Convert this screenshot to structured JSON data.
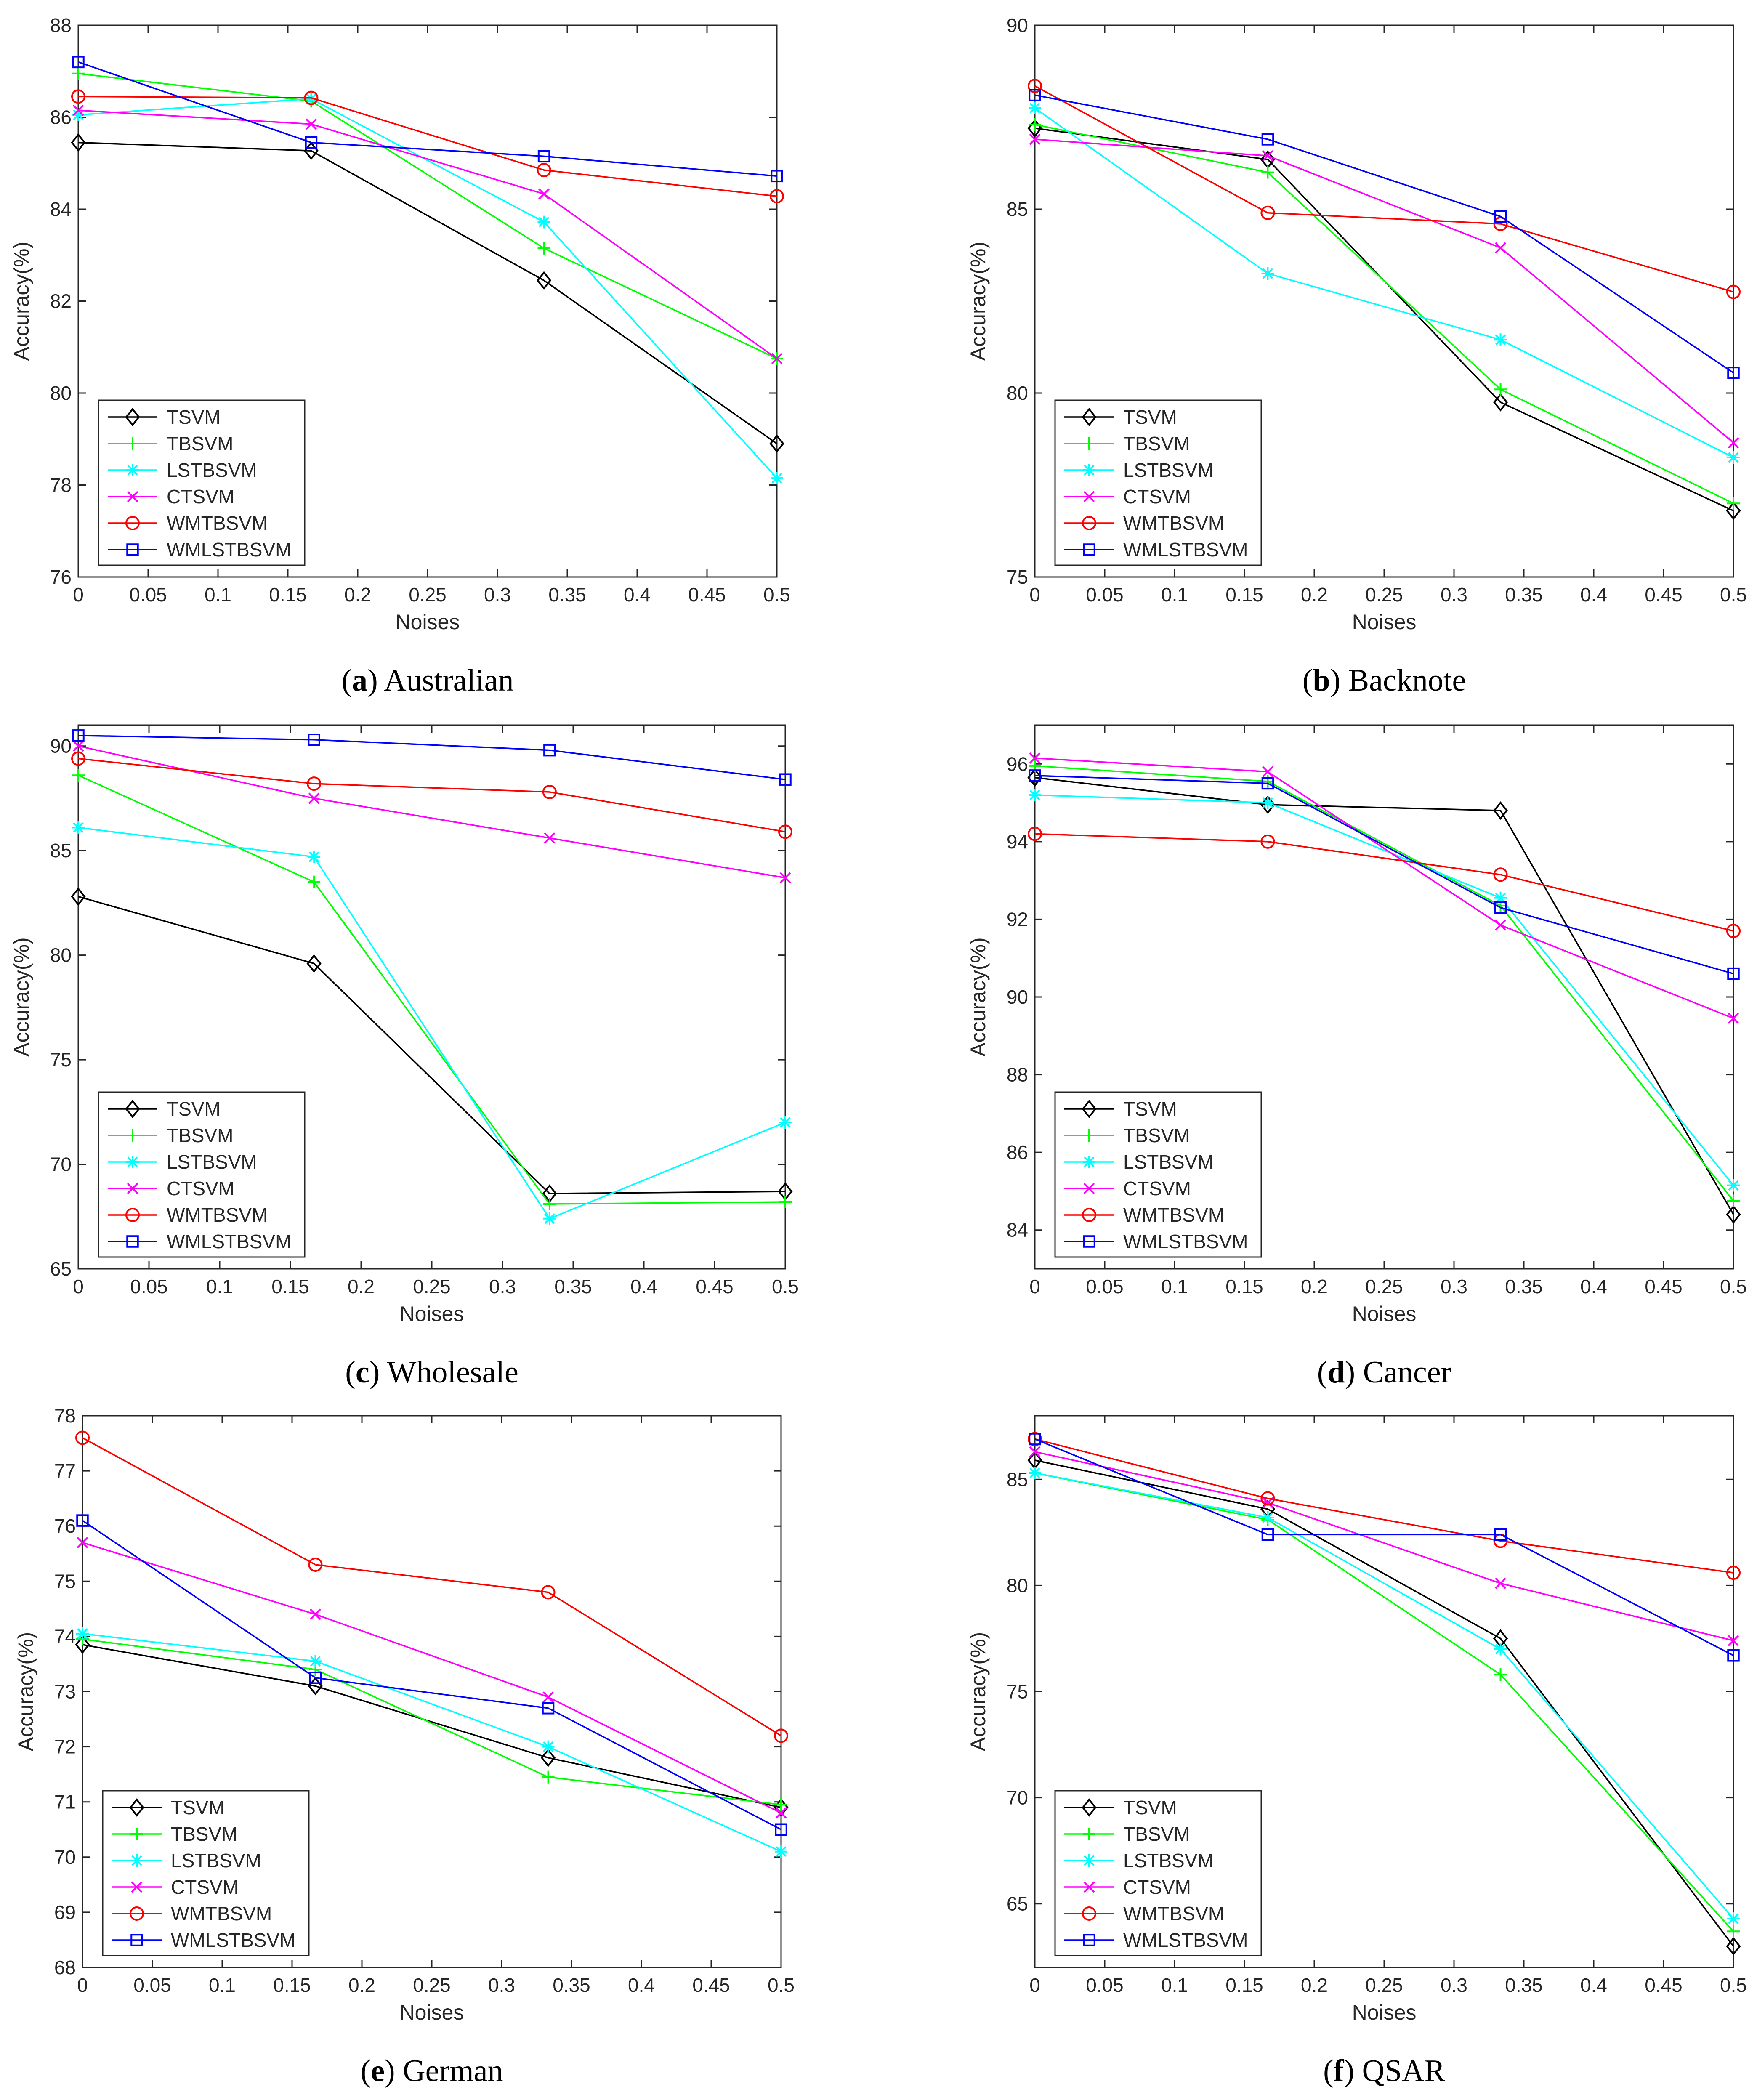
{
  "colors": {
    "TSVM": "#000000",
    "TBSVM": "#00ff00",
    "LSTBSVM": "#00ffff",
    "CTSVM": "#ff00ff",
    "WMTBSVM": "#ff0000",
    "WMLSTBSVM": "#0000ff"
  },
  "chart_data": [
    {
      "type": "line",
      "panel_letter": "a",
      "caption": "Australian",
      "xlabel": "Noises",
      "ylabel": "Accuracy(%)",
      "xlim": [
        0,
        0.5
      ],
      "ylim": [
        76,
        88
      ],
      "xticks": [
        0,
        0.05,
        0.1,
        0.15,
        0.2,
        0.25,
        0.3,
        0.35,
        0.4,
        0.45,
        0.5
      ],
      "xtick_labels": [
        "0",
        "0.05",
        "0.1",
        "0.15",
        "0.2",
        "0.25",
        "0.3",
        "0.35",
        "0.4",
        "0.45",
        "0.5"
      ],
      "yticks": [
        76,
        78,
        80,
        82,
        84,
        86,
        88
      ],
      "ytick_labels": [
        "76",
        "78",
        "80",
        "82",
        "84",
        "86",
        "88"
      ],
      "x": [
        0,
        0.1667,
        0.3333,
        0.5
      ],
      "legend": "bottom-left",
      "series": [
        {
          "name": "TSVM",
          "marker": "diamond",
          "values": [
            85.45,
            85.27,
            82.45,
            78.9
          ]
        },
        {
          "name": "TBSVM",
          "marker": "plus",
          "values": [
            86.95,
            86.35,
            83.15,
            80.75
          ]
        },
        {
          "name": "LSTBSVM",
          "marker": "star",
          "values": [
            86.05,
            86.4,
            83.72,
            78.15
          ]
        },
        {
          "name": "CTSVM",
          "marker": "x",
          "values": [
            86.15,
            85.85,
            84.33,
            80.75
          ]
        },
        {
          "name": "WMTBSVM",
          "marker": "circle",
          "values": [
            86.45,
            86.42,
            84.85,
            84.28
          ]
        },
        {
          "name": "WMLSTBSVM",
          "marker": "square",
          "values": [
            87.2,
            85.45,
            85.15,
            84.72
          ]
        }
      ]
    },
    {
      "type": "line",
      "panel_letter": "b",
      "caption": "Backnote",
      "xlabel": "Noises",
      "ylabel": "Accuracy(%)",
      "xlim": [
        0,
        0.5
      ],
      "ylim": [
        75,
        90
      ],
      "xticks": [
        0,
        0.05,
        0.1,
        0.15,
        0.2,
        0.25,
        0.3,
        0.35,
        0.4,
        0.45,
        0.5
      ],
      "xtick_labels": [
        "0",
        "0.05",
        "0.1",
        "0.15",
        "0.2",
        "0.25",
        "0.3",
        "0.35",
        "0.4",
        "0.45",
        "0.5"
      ],
      "yticks": [
        75,
        80,
        85,
        90
      ],
      "ytick_labels": [
        "75",
        "80",
        "85",
        "90"
      ],
      "x": [
        0,
        0.1667,
        0.3333,
        0.5
      ],
      "legend": "bottom-left",
      "series": [
        {
          "name": "TSVM",
          "marker": "diamond",
          "values": [
            87.2,
            86.35,
            79.75,
            76.8
          ]
        },
        {
          "name": "TBSVM",
          "marker": "plus",
          "values": [
            87.3,
            86.0,
            80.1,
            77.0
          ]
        },
        {
          "name": "LSTBSVM",
          "marker": "star",
          "values": [
            87.75,
            83.25,
            81.45,
            78.25
          ]
        },
        {
          "name": "CTSVM",
          "marker": "x",
          "values": [
            86.9,
            86.45,
            83.95,
            78.65
          ]
        },
        {
          "name": "WMTBSVM",
          "marker": "circle",
          "values": [
            88.35,
            84.9,
            84.6,
            82.75
          ]
        },
        {
          "name": "WMLSTBSVM",
          "marker": "square",
          "values": [
            88.1,
            86.9,
            84.8,
            80.55
          ]
        }
      ]
    },
    {
      "type": "line",
      "panel_letter": "c",
      "caption": "Wholesale",
      "xlabel": "Noises",
      "ylabel": "Accuracy(%)",
      "xlim": [
        0,
        0.5
      ],
      "ylim": [
        65,
        91
      ],
      "xticks": [
        0,
        0.05,
        0.1,
        0.15,
        0.2,
        0.25,
        0.3,
        0.35,
        0.4,
        0.45,
        0.5
      ],
      "xtick_labels": [
        "0",
        "0.05",
        "0.1",
        "0.15",
        "0.2",
        "0.25",
        "0.3",
        "0.35",
        "0.4",
        "0.45",
        "0.5"
      ],
      "yticks": [
        65,
        70,
        75,
        80,
        85,
        90
      ],
      "ytick_labels": [
        "65",
        "70",
        "75",
        "80",
        "85",
        "90"
      ],
      "x": [
        0,
        0.1667,
        0.3333,
        0.5
      ],
      "legend": "bottom-left",
      "series": [
        {
          "name": "TSVM",
          "marker": "diamond",
          "values": [
            82.8,
            79.6,
            68.6,
            68.7
          ]
        },
        {
          "name": "TBSVM",
          "marker": "plus",
          "values": [
            88.6,
            83.5,
            68.1,
            68.2
          ]
        },
        {
          "name": "LSTBSVM",
          "marker": "star",
          "values": [
            86.1,
            84.7,
            67.4,
            72.0
          ]
        },
        {
          "name": "CTSVM",
          "marker": "x",
          "values": [
            90.0,
            87.5,
            85.6,
            83.7
          ]
        },
        {
          "name": "WMTBSVM",
          "marker": "circle",
          "values": [
            89.4,
            88.2,
            87.8,
            85.9
          ]
        },
        {
          "name": "WMLSTBSVM",
          "marker": "square",
          "values": [
            90.5,
            90.3,
            89.8,
            88.4
          ]
        }
      ]
    },
    {
      "type": "line",
      "panel_letter": "d",
      "caption": "Cancer",
      "xlabel": "Noises",
      "ylabel": "Accuracy(%)",
      "xlim": [
        0,
        0.5
      ],
      "ylim": [
        83,
        97
      ],
      "xticks": [
        0,
        0.05,
        0.1,
        0.15,
        0.2,
        0.25,
        0.3,
        0.35,
        0.4,
        0.45,
        0.5
      ],
      "xtick_labels": [
        "0",
        "0.05",
        "0.1",
        "0.15",
        "0.2",
        "0.25",
        "0.3",
        "0.35",
        "0.4",
        "0.45",
        "0.5"
      ],
      "yticks": [
        84,
        86,
        88,
        90,
        92,
        94,
        96
      ],
      "ytick_labels": [
        "84",
        "86",
        "88",
        "90",
        "92",
        "94",
        "96"
      ],
      "x": [
        0,
        0.1667,
        0.3333,
        0.5
      ],
      "legend": "bottom-left",
      "series": [
        {
          "name": "TSVM",
          "marker": "diamond",
          "values": [
            95.65,
            94.95,
            94.8,
            84.4
          ]
        },
        {
          "name": "TBSVM",
          "marker": "plus",
          "values": [
            95.95,
            95.55,
            92.35,
            84.75
          ]
        },
        {
          "name": "LSTBSVM",
          "marker": "star",
          "values": [
            95.2,
            95.0,
            92.55,
            85.15
          ]
        },
        {
          "name": "CTSVM",
          "marker": "x",
          "values": [
            96.15,
            95.8,
            91.85,
            89.45
          ]
        },
        {
          "name": "WMTBSVM",
          "marker": "circle",
          "values": [
            94.2,
            94.0,
            93.15,
            91.7
          ]
        },
        {
          "name": "WMLSTBSVM",
          "marker": "square",
          "values": [
            95.7,
            95.5,
            92.3,
            90.6
          ]
        }
      ]
    },
    {
      "type": "line",
      "panel_letter": "e",
      "caption": "German",
      "xlabel": "Noises",
      "ylabel": "Accuracy(%)",
      "xlim": [
        0,
        0.5
      ],
      "ylim": [
        68,
        78
      ],
      "xticks": [
        0,
        0.05,
        0.1,
        0.15,
        0.2,
        0.25,
        0.3,
        0.35,
        0.4,
        0.45,
        0.5
      ],
      "xtick_labels": [
        "0",
        "0.05",
        "0.1",
        "0.15",
        "0.2",
        "0.25",
        "0.3",
        "0.35",
        "0.4",
        "0.45",
        "0.5"
      ],
      "yticks": [
        68,
        69,
        70,
        71,
        72,
        73,
        74,
        75,
        76,
        77,
        78
      ],
      "ytick_labels": [
        "68",
        "69",
        "70",
        "71",
        "72",
        "73",
        "74",
        "75",
        "76",
        "77",
        "78"
      ],
      "x": [
        0,
        0.1667,
        0.3333,
        0.5
      ],
      "legend": "bottom-left",
      "series": [
        {
          "name": "TSVM",
          "marker": "diamond",
          "values": [
            73.85,
            73.1,
            71.8,
            70.9
          ]
        },
        {
          "name": "TBSVM",
          "marker": "plus",
          "values": [
            73.95,
            73.4,
            71.45,
            70.95
          ]
        },
        {
          "name": "LSTBSVM",
          "marker": "star",
          "values": [
            74.05,
            73.55,
            72.0,
            70.1
          ]
        },
        {
          "name": "CTSVM",
          "marker": "x",
          "values": [
            75.7,
            74.4,
            72.9,
            70.8
          ]
        },
        {
          "name": "WMTBSVM",
          "marker": "circle",
          "values": [
            77.6,
            75.3,
            74.8,
            72.2
          ]
        },
        {
          "name": "WMLSTBSVM",
          "marker": "square",
          "values": [
            76.1,
            73.25,
            72.7,
            70.5
          ]
        }
      ]
    },
    {
      "type": "line",
      "panel_letter": "f",
      "caption": "QSAR",
      "xlabel": "Noises",
      "ylabel": "Accuracy(%)",
      "xlim": [
        0,
        0.5
      ],
      "ylim": [
        62,
        88
      ],
      "xticks": [
        0,
        0.05,
        0.1,
        0.15,
        0.2,
        0.25,
        0.3,
        0.35,
        0.4,
        0.45,
        0.5
      ],
      "xtick_labels": [
        "0",
        "0.05",
        "0.1",
        "0.15",
        "0.2",
        "0.25",
        "0.3",
        "0.35",
        "0.4",
        "0.45",
        "0.5"
      ],
      "yticks": [
        65,
        70,
        75,
        80,
        85
      ],
      "ytick_labels": [
        "65",
        "70",
        "75",
        "80",
        "85"
      ],
      "x": [
        0,
        0.1667,
        0.3333,
        0.5
      ],
      "legend": "bottom-left",
      "series": [
        {
          "name": "TSVM",
          "marker": "diamond",
          "values": [
            85.9,
            83.6,
            77.5,
            63.0
          ]
        },
        {
          "name": "TBSVM",
          "marker": "plus",
          "values": [
            85.3,
            83.1,
            75.8,
            63.7
          ]
        },
        {
          "name": "LSTBSVM",
          "marker": "star",
          "values": [
            85.3,
            83.2,
            77.0,
            64.3
          ]
        },
        {
          "name": "CTSVM",
          "marker": "x",
          "values": [
            86.3,
            83.9,
            80.1,
            77.4
          ]
        },
        {
          "name": "WMTBSVM",
          "marker": "circle",
          "values": [
            86.9,
            84.1,
            82.1,
            80.6
          ]
        },
        {
          "name": "WMLSTBSVM",
          "marker": "square",
          "values": [
            86.9,
            82.4,
            82.4,
            76.7
          ]
        }
      ]
    }
  ]
}
